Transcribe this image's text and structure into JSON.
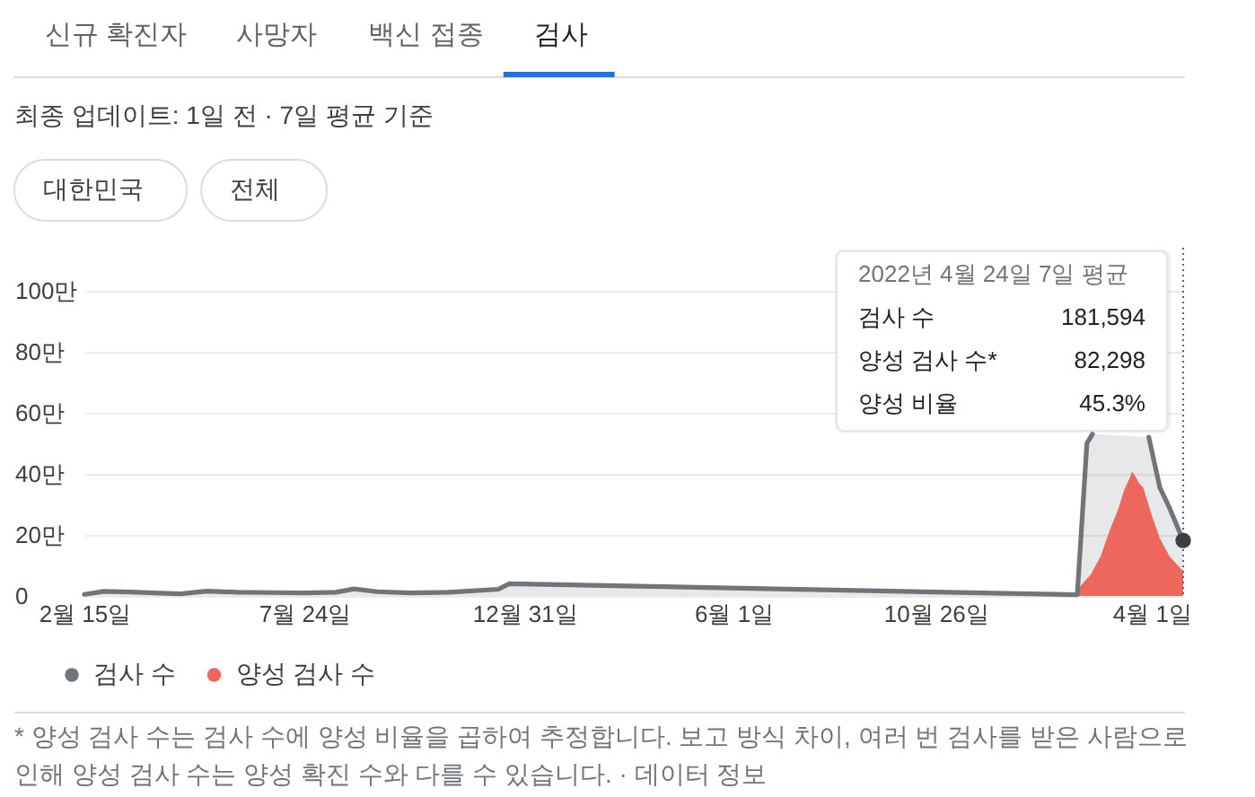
{
  "chart_data": {
    "type": "area",
    "title": "검사",
    "subtitle": "최종 업데이트: 1일 전 · 7일 평균 기준",
    "annotations": [
      "신규 확진자",
      "사망자",
      "백신 접종",
      "대한민국",
      "전체",
      {
        "text": "2022년 4월 24일 7일 평균",
        "x": "2022-04-24"
      },
      "검사 수",
      {
        "text": "181,594",
        "x": "2022-04-24"
      },
      "양성 검사 수*",
      {
        "text": "82,298",
        "x": "2022-04-24"
      },
      "양성 비율",
      {
        "text": "45.3%",
        "x": "2022-04-24"
      },
      "* 양성 검사 수는 검사 수에 양성 비율을 곱하여 추정합니다. 보고 방식 차이, 여러 번 검사를 받은 사람으로 인해 양성 검사 수는 양성 확진 수와 다를 수 있습니다. · 데이터 정보"
    ],
    "xlim": [
      "2020-02-15",
      "2022-04-24"
    ],
    "xticks": [
      {
        "value": "2020-02-15",
        "label": "2월 15일"
      },
      {
        "value": "2020-07-24",
        "label": "7월 24일"
      },
      {
        "value": "2020-12-31",
        "label": "12월 31일"
      },
      {
        "value": "2021-06-01",
        "label": "6월 1일"
      },
      {
        "value": "2021-10-26",
        "label": "10월 26일"
      },
      {
        "value": "2022-04-01",
        "label": "4월 1일"
      }
    ],
    "ylim": [
      0,
      114
    ],
    "yticks": [
      0,
      {
        "value": 20,
        "label": "20만"
      },
      {
        "value": 40,
        "label": "40만"
      },
      {
        "value": 60,
        "label": "60만"
      },
      {
        "value": 80,
        "label": "80만"
      },
      {
        "value": 100,
        "label": "100만"
      }
    ],
    "grid": "y",
    "legend": "bottom left",
    "ref_lines": [
      {
        "axis": "x",
        "value": "2022-04-24",
        "color": "#5f6368",
        "line_style": "dotted"
      }
    ],
    "series": [
      {
        "name": "검사 수",
        "color": "#70757a",
        "line_style": "solid",
        "x": [
          "2020-02-15",
          "2020-02-29",
          "2020-03-20",
          "2020-04-10",
          "2020-04-25",
          "2020-05-14",
          "2020-06-06",
          "2020-07-01",
          "2020-07-24",
          "2020-08-16",
          "2020-08-29",
          "2020-09-15",
          "2020-10-10",
          "2020-11-05",
          "2020-11-25",
          "2020-12-12",
          "2020-12-20",
          "2022-02-06",
          "2022-02-13",
          "2022-02-17",
          "2022-03-08",
          "2022-03-30",
          "2022-04-07",
          "2022-04-14",
          "2022-04-24"
        ],
        "values": [
          0.5,
          1.5,
          1.3,
          0.9,
          0.7,
          1.6,
          1.2,
          1.1,
          1.0,
          1.2,
          2.3,
          1.4,
          1.0,
          1.2,
          1.7,
          2.2,
          4.0,
          0.4,
          50.0,
          53.0,
          null,
          52.0,
          35.5,
          28.9,
          18.1594
        ]
      },
      {
        "name": "양성 검사 수",
        "color": "#ee675c",
        "x": [
          "2022-02-07",
          "2022-02-10",
          "2022-02-16",
          "2022-02-23",
          "2022-03-01",
          "2022-03-08",
          "2022-03-12",
          "2022-03-15",
          "2022-03-18",
          "2022-03-21",
          "2022-03-23",
          "2022-03-26",
          "2022-04-01",
          "2022-04-07",
          "2022-04-14",
          "2022-04-20",
          "2022-04-24"
        ],
        "values": [
          2.5,
          4.1,
          7.1,
          13.0,
          20.8,
          28.7,
          34.6,
          37.5,
          40.8,
          38.5,
          36.9,
          35.5,
          26.7,
          18.9,
          13.0,
          10.0,
          8.2298
        ]
      },
      {
        "type": "scatter",
        "color": "#3c4043",
        "marker": "circle",
        "x": [
          "2022-04-24"
        ],
        "values": [
          18.1594
        ]
      }
    ]
  }
}
